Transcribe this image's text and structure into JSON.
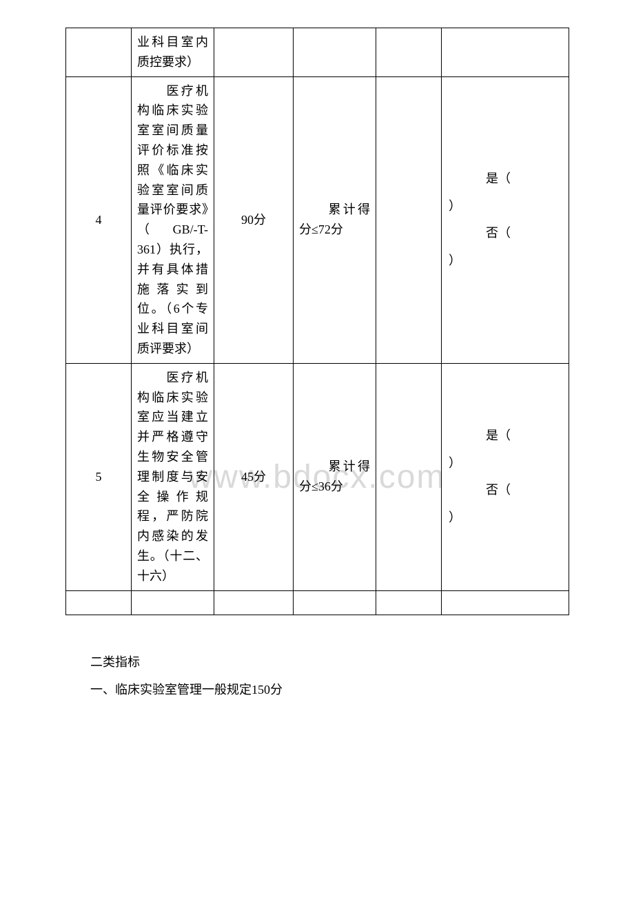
{
  "watermark": "www.bdocx.com",
  "table": {
    "row_prev": {
      "c2": "业科目室内质控要求）"
    },
    "row4": {
      "c1": "4",
      "c2": "　　医疗机构临床实验室室间质量评价标准按照《临床实验室室间质量评价要求》（GB/-T-361）执行，并有具体措施落实到位。（6个专业科目室间质评要求）",
      "c3": "90分",
      "c4": "　　累计得分≤72分",
      "yes_label": "是（",
      "no_label": "否（",
      "paren": "）"
    },
    "row5": {
      "c1": "5",
      "c2": "　　医疗机构临床实验室应当建立并严格遵守生物安全管理制度与安全操作规程，严防院内感染的发生。（十二、十六）",
      "c3": "45分",
      "c4": "　　累计得分≤36分",
      "yes_label": "是（",
      "no_label": "否（",
      "paren": "）"
    }
  },
  "section": {
    "heading": "二类指标",
    "line1": "一、临床实验室管理一般规定150分"
  }
}
